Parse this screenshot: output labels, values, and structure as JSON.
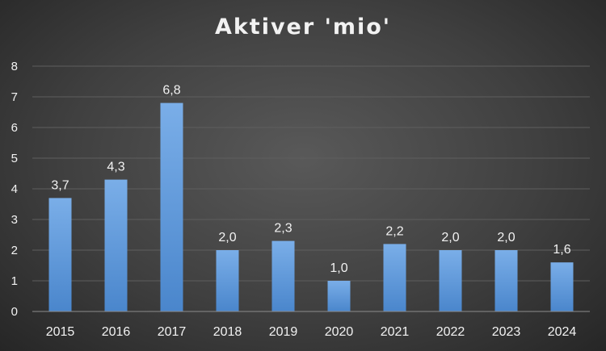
{
  "chart_data": {
    "type": "bar",
    "title": "Aktiver 'mio'",
    "xlabel": "",
    "ylabel": "",
    "categories": [
      "2015",
      "2016",
      "2017",
      "2018",
      "2019",
      "2020",
      "2021",
      "2022",
      "2023",
      "2024"
    ],
    "values": [
      3.7,
      4.3,
      6.8,
      2.0,
      2.3,
      1.0,
      2.2,
      2.0,
      2.0,
      1.6
    ],
    "data_labels": [
      "3,7",
      "4,3",
      "6,8",
      "2,0",
      "2,3",
      "1,0",
      "2,2",
      "2,0",
      "2,0",
      "1,6"
    ],
    "ylim": [
      0,
      8
    ],
    "yticks": [
      "0",
      "1",
      "2",
      "3",
      "4",
      "5",
      "6",
      "7",
      "8"
    ],
    "grid": true,
    "legend": "none",
    "colors": {
      "bar_top": "#7aaee8",
      "bar_bottom": "#4a86cc",
      "grid": "#5e5e5e",
      "axis": "#8c8c8c",
      "text": "#f2f2f2"
    }
  }
}
